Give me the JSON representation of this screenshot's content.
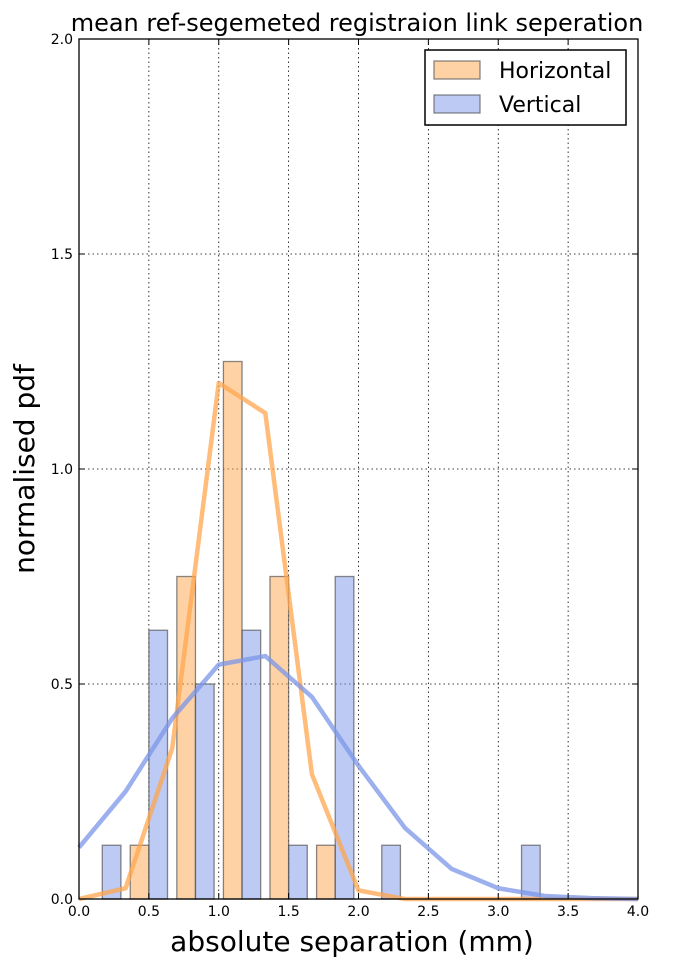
{
  "chart_data": {
    "type": "bar",
    "title": "mean ref-segemeted registraion link seperation",
    "xlabel": "absolute separation (mm)",
    "ylabel": "normalised pdf",
    "xlim": [
      0,
      4
    ],
    "ylim": [
      0,
      2
    ],
    "xticks": [
      "0.0",
      "0.5",
      "1.0",
      "1.5",
      "2.0",
      "2.5",
      "3.0",
      "3.5",
      "4.0"
    ],
    "yticks": [
      "0.0",
      "0.5",
      "1.0",
      "1.5",
      "2.0"
    ],
    "grid": true,
    "legend_position": "top-right",
    "bar_width": 0.1333,
    "series": [
      {
        "name": "Horizontal",
        "color": "#ffa64d",
        "bars": {
          "x": [
            0.4333,
            0.7667,
            1.1,
            1.4333,
            1.7667
          ],
          "values": [
            0.125,
            0.75,
            1.25,
            0.75,
            0.125
          ]
        },
        "curve": {
          "x": [
            0.0,
            0.3333,
            0.6667,
            1.0,
            1.3333,
            1.6667,
            2.0,
            2.3333,
            2.6667,
            3.0,
            3.3333,
            3.6667,
            4.0
          ],
          "y": [
            0.0,
            0.025,
            0.35,
            1.2,
            1.13,
            0.29,
            0.02,
            0.0,
            0.0,
            0.0,
            0.0,
            0.0,
            0.0
          ]
        }
      },
      {
        "name": "Vertical",
        "color": "#7b96e8",
        "bars": {
          "x": [
            0.2333,
            0.5667,
            0.9,
            1.2333,
            1.5667,
            1.9,
            2.2333,
            3.2333
          ],
          "values": [
            0.125,
            0.625,
            0.5,
            0.625,
            0.125,
            0.75,
            0.125,
            0.125
          ]
        },
        "curve": {
          "x": [
            0.0,
            0.3333,
            0.6667,
            1.0,
            1.3333,
            1.6667,
            2.0,
            2.3333,
            2.6667,
            3.0,
            3.3333,
            3.6667,
            4.0
          ],
          "y": [
            0.12,
            0.25,
            0.42,
            0.545,
            0.565,
            0.47,
            0.31,
            0.165,
            0.07,
            0.025,
            0.007,
            0.002,
            0.0
          ]
        }
      }
    ]
  }
}
